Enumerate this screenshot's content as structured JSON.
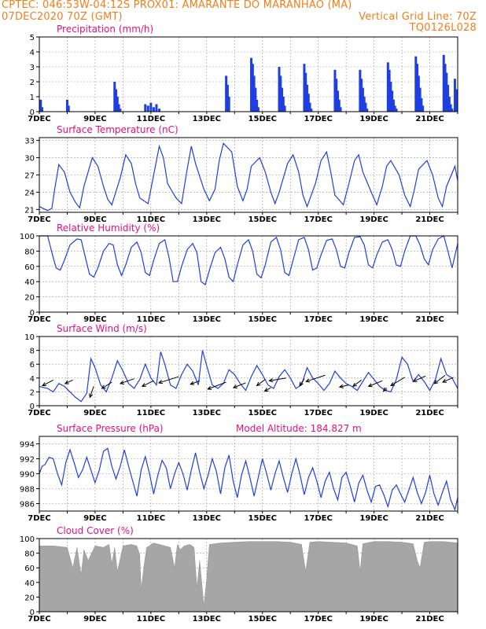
{
  "header": {
    "line1_left": "CPTEC:   046:53W-04:12S   PROX01: AMARANTE DO MARANHAO (MA)",
    "line2_left": "07DEC2020 70Z (GMT)",
    "line2_right": "Vertical Grid Line: 70Z",
    "line3_right": "TQ0126L028"
  },
  "colors": {
    "header": "#f07f1a",
    "title": "#e0107a",
    "line": "#1f3fe0",
    "bar": "#1f3fe0",
    "cloud": "#a6a6a6",
    "grid": "#9a9a9a"
  },
  "x_axis": {
    "start_day": 7,
    "end_day": 22,
    "labels": [
      "7DEC",
      "9DEC",
      "11DEC",
      "13DEC",
      "15DEC",
      "17DEC",
      "19DEC",
      "21DEC"
    ],
    "label_days": [
      7,
      9,
      11,
      13,
      15,
      17,
      19,
      21
    ]
  },
  "chart_data": [
    {
      "id": "precip",
      "type": "bar",
      "title": "Precipitation (mm/h)",
      "ylim": [
        0,
        5
      ],
      "yticks": [
        0,
        1,
        2,
        3,
        4,
        5
      ],
      "x": [
        7.05,
        7.1,
        8.0,
        8.05,
        9.7,
        9.75,
        9.8,
        9.85,
        9.9,
        10.8,
        10.9,
        11.0,
        11.1,
        11.2,
        11.3,
        13.7,
        13.75,
        13.8,
        14.6,
        14.65,
        14.7,
        14.75,
        14.8,
        14.85,
        15.6,
        15.65,
        15.7,
        15.75,
        15.8,
        16.5,
        16.55,
        16.6,
        16.65,
        16.7,
        16.75,
        17.6,
        17.65,
        17.7,
        17.75,
        17.8,
        18.5,
        18.55,
        18.6,
        18.65,
        18.7,
        18.75,
        19.5,
        19.55,
        19.6,
        19.65,
        19.7,
        19.75,
        19.8,
        20.5,
        20.55,
        20.6,
        20.65,
        20.7,
        20.75,
        21.5,
        21.55,
        21.6,
        21.65,
        21.7,
        21.75,
        21.8,
        21.9,
        21.95
      ],
      "values": [
        0.8,
        0.3,
        0.8,
        0.4,
        2.0,
        1.5,
        1.0,
        0.5,
        0.2,
        0.5,
        0.4,
        0.6,
        0.3,
        0.5,
        0.2,
        2.4,
        1.8,
        1.0,
        3.6,
        3.2,
        2.4,
        1.6,
        0.8,
        0.3,
        3.0,
        2.4,
        1.6,
        1.0,
        0.4,
        3.2,
        2.6,
        1.8,
        1.2,
        0.6,
        0.2,
        2.8,
        2.2,
        1.4,
        0.8,
        0.3,
        2.8,
        2.2,
        1.6,
        1.0,
        0.6,
        0.2,
        3.3,
        2.8,
        2.0,
        1.4,
        0.8,
        0.4,
        0.2,
        3.7,
        3.2,
        2.4,
        1.6,
        0.9,
        0.4,
        3.8,
        3.2,
        2.6,
        1.8,
        1.0,
        0.5,
        0.2,
        2.2,
        1.5
      ]
    },
    {
      "id": "temp",
      "type": "line",
      "title": "Surface Temperature (nC)",
      "ylim": [
        20.5,
        33.5
      ],
      "yticks": [
        21,
        24,
        27,
        30,
        33
      ],
      "x": [
        7.0,
        7.3,
        7.45,
        7.55,
        7.7,
        7.9,
        8.1,
        8.3,
        8.45,
        8.6,
        8.9,
        9.1,
        9.3,
        9.45,
        9.6,
        9.9,
        10.1,
        10.3,
        10.45,
        10.6,
        10.9,
        11.1,
        11.3,
        11.45,
        11.6,
        11.9,
        12.1,
        12.3,
        12.45,
        12.6,
        12.9,
        13.1,
        13.3,
        13.45,
        13.6,
        13.9,
        14.1,
        14.3,
        14.45,
        14.6,
        14.9,
        15.1,
        15.3,
        15.45,
        15.6,
        15.9,
        16.1,
        16.3,
        16.45,
        16.6,
        16.9,
        17.1,
        17.3,
        17.45,
        17.6,
        17.9,
        18.1,
        18.3,
        18.45,
        18.6,
        18.9,
        19.1,
        19.3,
        19.45,
        19.6,
        19.9,
        20.1,
        20.3,
        20.45,
        20.6,
        20.9,
        21.1,
        21.3,
        21.45,
        21.6,
        21.9,
        22.0
      ],
      "values": [
        21.5,
        20.8,
        21.2,
        24.5,
        28.8,
        27.5,
        24.0,
        22.2,
        21.3,
        25.0,
        30.0,
        28.5,
        25.0,
        22.8,
        21.8,
        26.5,
        30.5,
        29.0,
        25.5,
        23.0,
        22.0,
        27.0,
        32.0,
        30.0,
        25.5,
        23.0,
        22.0,
        28.0,
        32.0,
        29.0,
        24.5,
        22.5,
        24.5,
        29.5,
        32.5,
        31.0,
        25.0,
        22.5,
        24.5,
        28.5,
        30.0,
        27.5,
        24.0,
        22.0,
        24.0,
        29.0,
        30.5,
        27.5,
        23.5,
        21.5,
        25.5,
        29.5,
        31.0,
        27.5,
        23.5,
        21.8,
        25.5,
        29.5,
        30.5,
        27.5,
        24.0,
        21.8,
        25.0,
        28.5,
        29.5,
        27.0,
        23.5,
        21.5,
        24.5,
        28.0,
        29.5,
        27.0,
        23.0,
        21.5,
        25.0,
        28.5,
        26.0
      ]
    },
    {
      "id": "rh",
      "type": "line",
      "title": "Relative Humidity (%)",
      "ylim": [
        0,
        100
      ],
      "yticks": [
        0,
        20,
        40,
        60,
        80,
        100
      ],
      "x": [
        7.0,
        7.3,
        7.45,
        7.6,
        7.75,
        7.9,
        8.1,
        8.35,
        8.5,
        8.65,
        8.8,
        8.95,
        9.1,
        9.3,
        9.5,
        9.65,
        9.8,
        9.95,
        10.1,
        10.3,
        10.5,
        10.65,
        10.8,
        10.95,
        11.1,
        11.3,
        11.5,
        11.65,
        11.8,
        11.95,
        12.1,
        12.3,
        12.5,
        12.65,
        12.8,
        12.95,
        13.1,
        13.3,
        13.5,
        13.65,
        13.8,
        13.95,
        14.1,
        14.3,
        14.5,
        14.65,
        14.8,
        14.95,
        15.1,
        15.3,
        15.5,
        15.65,
        15.8,
        15.95,
        16.1,
        16.3,
        16.5,
        16.65,
        16.8,
        16.95,
        17.1,
        17.3,
        17.5,
        17.65,
        17.8,
        17.95,
        18.1,
        18.3,
        18.5,
        18.65,
        18.8,
        18.95,
        19.1,
        19.3,
        19.5,
        19.65,
        19.8,
        19.95,
        20.1,
        20.3,
        20.5,
        20.65,
        20.8,
        20.95,
        21.1,
        21.3,
        21.5,
        21.65,
        21.8,
        22.0
      ],
      "values": [
        100,
        100,
        78,
        58,
        55,
        68,
        88,
        96,
        95,
        72,
        50,
        46,
        58,
        80,
        90,
        88,
        62,
        48,
        62,
        85,
        92,
        78,
        52,
        48,
        68,
        90,
        95,
        72,
        40,
        40,
        60,
        82,
        90,
        78,
        40,
        36,
        55,
        78,
        85,
        70,
        46,
        40,
        62,
        88,
        95,
        80,
        50,
        45,
        62,
        92,
        98,
        82,
        52,
        48,
        68,
        95,
        98,
        82,
        55,
        58,
        75,
        94,
        96,
        82,
        60,
        58,
        78,
        98,
        99,
        88,
        62,
        58,
        75,
        92,
        95,
        82,
        62,
        60,
        80,
        100,
        100,
        88,
        70,
        62,
        82,
        96,
        100,
        80,
        58,
        90
      ]
    },
    {
      "id": "wind",
      "type": "line",
      "title": "Surface Wind (m/s)",
      "ylim": [
        0,
        10
      ],
      "yticks": [
        0,
        2,
        4,
        6,
        8,
        10
      ],
      "x": [
        7.0,
        7.3,
        7.5,
        7.7,
        7.9,
        8.1,
        8.3,
        8.5,
        8.7,
        8.85,
        9.0,
        9.2,
        9.4,
        9.6,
        9.8,
        10.0,
        10.2,
        10.4,
        10.6,
        10.8,
        11.0,
        11.2,
        11.35,
        11.5,
        11.7,
        11.9,
        12.1,
        12.3,
        12.5,
        12.7,
        12.85,
        13.0,
        13.2,
        13.4,
        13.6,
        13.8,
        14.0,
        14.2,
        14.4,
        14.6,
        14.8,
        15.0,
        15.2,
        15.4,
        15.6,
        15.8,
        16.0,
        16.2,
        16.4,
        16.6,
        16.8,
        17.0,
        17.2,
        17.4,
        17.6,
        17.8,
        18.0,
        18.2,
        18.4,
        18.6,
        18.8,
        19.0,
        19.2,
        19.4,
        19.6,
        19.8,
        20.0,
        20.2,
        20.4,
        20.6,
        20.8,
        21.0,
        21.2,
        21.4,
        21.6,
        21.8,
        22.0
      ],
      "values": [
        2.8,
        2.5,
        2.0,
        3.2,
        2.8,
        2.0,
        1.2,
        0.6,
        1.8,
        6.8,
        5.5,
        3.0,
        2.0,
        4.0,
        6.5,
        5.0,
        3.2,
        2.5,
        3.8,
        6.0,
        4.0,
        3.0,
        7.8,
        6.0,
        3.0,
        2.5,
        4.5,
        6.0,
        5.0,
        3.0,
        8.0,
        5.8,
        3.0,
        2.5,
        3.2,
        5.2,
        4.5,
        3.2,
        2.2,
        4.2,
        5.8,
        4.5,
        3.0,
        2.5,
        4.2,
        5.2,
        4.0,
        2.5,
        3.0,
        5.5,
        4.0,
        3.2,
        2.2,
        3.2,
        5.0,
        4.0,
        3.2,
        2.8,
        2.2,
        3.5,
        4.8,
        3.8,
        2.8,
        2.2,
        2.0,
        3.8,
        7.0,
        6.0,
        3.5,
        4.5,
        3.5,
        2.2,
        3.8,
        6.8,
        4.5,
        4.0,
        2.5
      ],
      "arrows": [
        {
          "x": 7.5,
          "y": 3.7,
          "dx": -0.7,
          "dy": -0.8
        },
        {
          "x": 8.2,
          "y": 3.7,
          "dx": -0.5,
          "dy": -0.5
        },
        {
          "x": 8.95,
          "y": 2.8,
          "dx": -0.25,
          "dy": -1.6
        },
        {
          "x": 9.6,
          "y": 3.4,
          "dx": -0.65,
          "dy": -0.9
        },
        {
          "x": 10.4,
          "y": 3.9,
          "dx": -0.9,
          "dy": -0.7
        },
        {
          "x": 11.1,
          "y": 3.6,
          "dx": -0.75,
          "dy": -0.8
        },
        {
          "x": 12.0,
          "y": 4.2,
          "dx": -1.3,
          "dy": -0.9
        },
        {
          "x": 12.75,
          "y": 3.6,
          "dx": -0.6,
          "dy": -0.5
        },
        {
          "x": 13.7,
          "y": 3.4,
          "dx": -1.2,
          "dy": -1.0
        },
        {
          "x": 14.4,
          "y": 3.3,
          "dx": -0.8,
          "dy": -0.7
        },
        {
          "x": 15.1,
          "y": 3.8,
          "dx": -0.55,
          "dy": -0.9
        },
        {
          "x": 15.3,
          "y": 2.6,
          "dx": -0.4,
          "dy": -0.5
        },
        {
          "x": 15.85,
          "y": 4.0,
          "dx": -1.1,
          "dy": -0.4
        },
        {
          "x": 16.5,
          "y": 3.9,
          "dx": -0.3,
          "dy": -1.0
        },
        {
          "x": 17.25,
          "y": 4.4,
          "dx": -1.25,
          "dy": -0.9
        },
        {
          "x": 18.1,
          "y": 3.0,
          "dx": -0.6,
          "dy": -0.3
        },
        {
          "x": 18.55,
          "y": 3.7,
          "dx": -0.55,
          "dy": -0.9
        },
        {
          "x": 19.3,
          "y": 3.6,
          "dx": -0.9,
          "dy": -0.8
        },
        {
          "x": 19.45,
          "y": 2.6,
          "dx": -0.2,
          "dy": -0.5
        },
        {
          "x": 20.1,
          "y": 4.1,
          "dx": -0.9,
          "dy": -1.2
        },
        {
          "x": 20.85,
          "y": 4.3,
          "dx": -0.8,
          "dy": -0.8
        },
        {
          "x": 21.55,
          "y": 4.4,
          "dx": -0.7,
          "dy": -1.2
        },
        {
          "x": 21.85,
          "y": 4.1,
          "dx": -0.7,
          "dy": -0.7
        }
      ]
    },
    {
      "id": "press",
      "type": "line",
      "title": "Surface Pressure (hPa)",
      "subtitle": "Model Altitude: 184.827 m",
      "ylim": [
        985.0,
        995.0
      ],
      "yticks": [
        986,
        988,
        990,
        992,
        994
      ],
      "x": [
        7.0,
        7.1,
        7.2,
        7.35,
        7.5,
        7.65,
        7.8,
        7.95,
        8.1,
        8.25,
        8.4,
        8.55,
        8.7,
        8.85,
        9.0,
        9.15,
        9.3,
        9.45,
        9.6,
        9.75,
        9.9,
        10.05,
        10.2,
        10.35,
        10.5,
        10.65,
        10.8,
        10.95,
        11.1,
        11.25,
        11.4,
        11.55,
        11.7,
        11.85,
        12.0,
        12.15,
        12.3,
        12.45,
        12.6,
        12.75,
        12.9,
        13.05,
        13.2,
        13.35,
        13.5,
        13.65,
        13.8,
        13.95,
        14.1,
        14.25,
        14.4,
        14.55,
        14.7,
        14.85,
        15.0,
        15.15,
        15.3,
        15.45,
        15.6,
        15.75,
        15.9,
        16.05,
        16.2,
        16.35,
        16.5,
        16.65,
        16.8,
        16.95,
        17.1,
        17.25,
        17.4,
        17.55,
        17.7,
        17.85,
        18.0,
        18.15,
        18.3,
        18.45,
        18.6,
        18.75,
        18.9,
        19.05,
        19.2,
        19.35,
        19.5,
        19.65,
        19.8,
        19.95,
        20.1,
        20.25,
        20.4,
        20.55,
        20.7,
        20.85,
        21.0,
        21.15,
        21.3,
        21.45,
        21.6,
        21.75,
        21.9,
        22.0
      ],
      "values": [
        990.0,
        991.0,
        991.2,
        992.2,
        992.0,
        990.0,
        988.5,
        991.5,
        993.2,
        991.5,
        989.5,
        990.5,
        992.2,
        990.5,
        988.8,
        990.5,
        993.0,
        993.4,
        991.0,
        989.3,
        991.0,
        993.2,
        991.0,
        989.0,
        987.0,
        990.5,
        992.3,
        990.0,
        987.3,
        989.8,
        991.8,
        990.8,
        988.0,
        990.0,
        991.5,
        990.0,
        987.8,
        990.5,
        992.8,
        990.2,
        988.0,
        989.8,
        992.0,
        990.3,
        987.3,
        990.8,
        992.5,
        989.0,
        986.8,
        989.8,
        991.7,
        989.5,
        987.0,
        989.5,
        992.0,
        990.0,
        987.8,
        990.0,
        991.7,
        989.5,
        987.5,
        990.0,
        992.0,
        989.8,
        987.2,
        989.5,
        990.8,
        989.0,
        986.8,
        989.0,
        990.2,
        988.0,
        986.5,
        989.5,
        990.2,
        988.3,
        986.2,
        988.7,
        989.8,
        987.8,
        986.2,
        988.3,
        988.5,
        987.2,
        985.6,
        987.8,
        988.5,
        987.3,
        986.2,
        987.8,
        989.5,
        987.5,
        986.0,
        987.5,
        989.8,
        987.3,
        985.8,
        987.5,
        989.0,
        986.5,
        985.2,
        986.8
      ]
    },
    {
      "id": "cloud",
      "type": "area",
      "title": "Cloud Cover (%)",
      "ylim": [
        0,
        100
      ],
      "yticks": [
        0,
        20,
        40,
        60,
        80,
        100
      ],
      "x": [
        7.0,
        7.5,
        8.0,
        8.2,
        8.35,
        8.5,
        8.6,
        8.75,
        9.0,
        9.3,
        9.5,
        9.6,
        9.7,
        9.8,
        10.0,
        10.3,
        10.5,
        10.6,
        10.65,
        10.75,
        10.85,
        10.95,
        11.0,
        11.1,
        11.3,
        11.5,
        11.7,
        11.85,
        11.95,
        12.05,
        12.2,
        12.4,
        12.55,
        12.65,
        12.75,
        12.9,
        13.0,
        13.1,
        13.5,
        14.0,
        14.5,
        15.0,
        15.5,
        16.0,
        16.4,
        16.55,
        16.7,
        17.0,
        17.5,
        18.0,
        18.4,
        18.5,
        18.6,
        19.0,
        19.5,
        20.0,
        20.4,
        20.55,
        20.65,
        20.8,
        21.0,
        21.5,
        22.0
      ],
      "values": [
        90,
        90,
        88,
        60,
        88,
        50,
        85,
        70,
        90,
        88,
        92,
        65,
        88,
        55,
        90,
        92,
        90,
        78,
        30,
        62,
        88,
        90,
        92,
        94,
        92,
        90,
        88,
        60,
        92,
        85,
        90,
        92,
        88,
        32,
        70,
        8,
        45,
        92,
        94,
        95,
        96,
        96,
        96,
        95,
        92,
        55,
        95,
        96,
        95,
        94,
        90,
        55,
        93,
        96,
        96,
        95,
        93,
        70,
        60,
        95,
        96,
        96,
        94
      ]
    }
  ]
}
